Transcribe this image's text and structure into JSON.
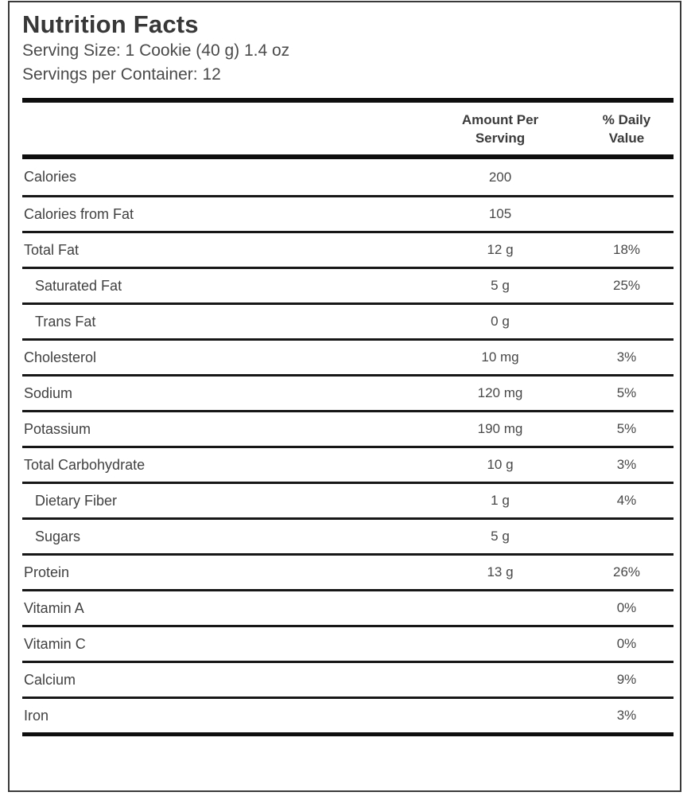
{
  "document": {
    "title": "Nutrition Facts",
    "serving_size": "Serving Size: 1 Cookie (40 g) 1.4 oz",
    "servings_per_container": "Servings per Container: 12",
    "columns": {
      "amount_header": "Amount Per\nServing",
      "daily_header": "% Daily\nValue"
    },
    "rows": [
      {
        "name": "Calories",
        "amount": "200",
        "daily": "",
        "indent": false
      },
      {
        "name": "Calories from Fat",
        "amount": "105",
        "daily": "",
        "indent": false
      },
      {
        "name": "Total Fat",
        "amount": "12 g",
        "daily": "18%",
        "indent": false
      },
      {
        "name": "Saturated Fat",
        "amount": "5 g",
        "daily": "25%",
        "indent": true
      },
      {
        "name": "Trans Fat",
        "amount": "0 g",
        "daily": "",
        "indent": true
      },
      {
        "name": "Cholesterol",
        "amount": "10 mg",
        "daily": "3%",
        "indent": false
      },
      {
        "name": "Sodium",
        "amount": "120 mg",
        "daily": "5%",
        "indent": false
      },
      {
        "name": "Potassium",
        "amount": "190 mg",
        "daily": "5%",
        "indent": false
      },
      {
        "name": "Total Carbohydrate",
        "amount": "10 g",
        "daily": "3%",
        "indent": false
      },
      {
        "name": "Dietary Fiber",
        "amount": "1 g",
        "daily": "4%",
        "indent": true
      },
      {
        "name": "Sugars",
        "amount": "5 g",
        "daily": "",
        "indent": true
      },
      {
        "name": "Protein",
        "amount": "13 g",
        "daily": "26%",
        "indent": false
      },
      {
        "name": "Vitamin A",
        "amount": "",
        "daily": "0%",
        "indent": false
      },
      {
        "name": "Vitamin C",
        "amount": "",
        "daily": "0%",
        "indent": false
      },
      {
        "name": "Calcium",
        "amount": "",
        "daily": "9%",
        "indent": false
      },
      {
        "name": "Iron",
        "amount": "",
        "daily": "3%",
        "indent": false
      }
    ],
    "colors": {
      "rule_line": "#171717",
      "thick_bar": "#0e0e0e",
      "text": "#414141",
      "outer_border": "#3a3a3a"
    }
  }
}
